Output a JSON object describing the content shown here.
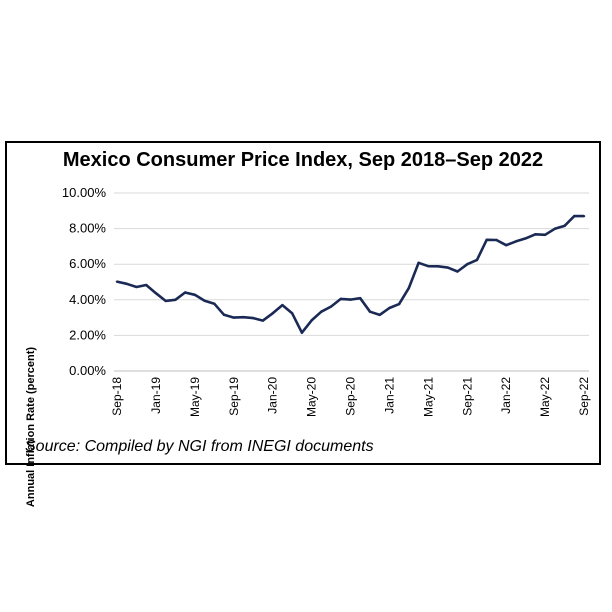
{
  "chart_data": {
    "type": "line",
    "title": "Mexico Consumer Price Index, Sep 2018–Sep 2022",
    "ylabel": "Annual Inflation Rate (percent)",
    "xlabel": "",
    "source": "Source: Compiled by NGI from INEGI documents",
    "ylim": [
      0,
      10
    ],
    "y_ticks": [
      "0.00%",
      "2.00%",
      "4.00%",
      "6.00%",
      "8.00%",
      "10.00%"
    ],
    "x_ticks": [
      "Sep-18",
      "Jan-19",
      "May-19",
      "Sep-19",
      "Jan-20",
      "May-20",
      "Sep-20",
      "Jan-21",
      "May-21",
      "Sep-21",
      "Jan-22",
      "May-22",
      "Sep-22"
    ],
    "grid": true,
    "line_color": "#1b2a55",
    "series": [
      {
        "x": [
          "Sep-18",
          "Oct-18",
          "Nov-18",
          "Dec-18",
          "Jan-19",
          "Feb-19",
          "Mar-19",
          "Apr-19",
          "May-19",
          "Jun-19",
          "Jul-19",
          "Aug-19",
          "Sep-19",
          "Oct-19",
          "Nov-19",
          "Dec-19",
          "Jan-20",
          "Feb-20",
          "Mar-20",
          "Apr-20",
          "May-20",
          "Jun-20",
          "Jul-20",
          "Aug-20",
          "Sep-20",
          "Oct-20",
          "Nov-20",
          "Dec-20",
          "Jan-21",
          "Feb-21",
          "Mar-21",
          "Apr-21",
          "May-21",
          "Jun-21",
          "Jul-21",
          "Aug-21",
          "Sep-21",
          "Oct-21",
          "Nov-21",
          "Dec-21",
          "Jan-22",
          "Feb-22",
          "Mar-22",
          "Apr-22",
          "May-22",
          "Jun-22",
          "Jul-22",
          "Aug-22",
          "Sep-22"
        ],
        "values": [
          5.02,
          4.9,
          4.72,
          4.83,
          4.37,
          3.94,
          4.0,
          4.41,
          4.28,
          3.95,
          3.78,
          3.16,
          3.0,
          3.02,
          2.97,
          2.83,
          3.24,
          3.7,
          3.25,
          2.15,
          2.84,
          3.33,
          3.62,
          4.05,
          4.01,
          4.09,
          3.33,
          3.15,
          3.54,
          3.76,
          4.67,
          6.08,
          5.89,
          5.88,
          5.81,
          5.59,
          6.0,
          6.24,
          7.37,
          7.36,
          7.07,
          7.28,
          7.45,
          7.68,
          7.65,
          7.99,
          8.15,
          8.7,
          8.7
        ]
      }
    ]
  }
}
